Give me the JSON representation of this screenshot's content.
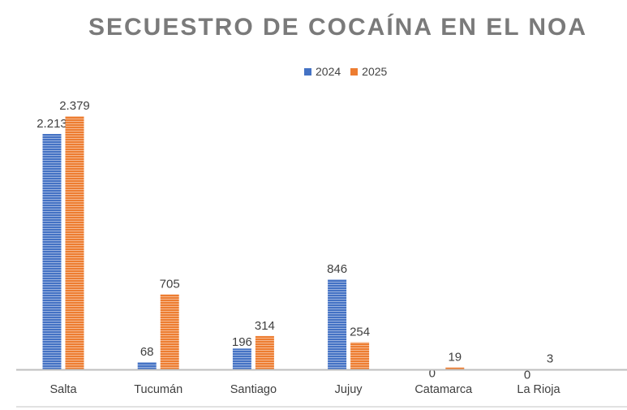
{
  "chart_data": {
    "type": "bar",
    "title": "SECUESTRO DE COCAÍNA EN EL NOA",
    "categories": [
      "Salta",
      "Tucumán",
      "Santiago",
      "Jujuy",
      "Catamarca",
      "La Rioja"
    ],
    "series": [
      {
        "name": "2024",
        "color": "#4472C4",
        "values": [
          2213,
          68,
          196,
          846,
          0,
          0
        ],
        "labels": [
          "2.213",
          "68",
          "196",
          "846",
          "0",
          "0"
        ]
      },
      {
        "name": "2025",
        "color": "#ED7D31",
        "values": [
          2379,
          705,
          314,
          254,
          19,
          3
        ],
        "labels": [
          "2.379",
          "705",
          "314",
          "254",
          "19",
          "3"
        ]
      }
    ],
    "ylim": [
      0,
      2500
    ],
    "grid": false,
    "legend": "top"
  }
}
